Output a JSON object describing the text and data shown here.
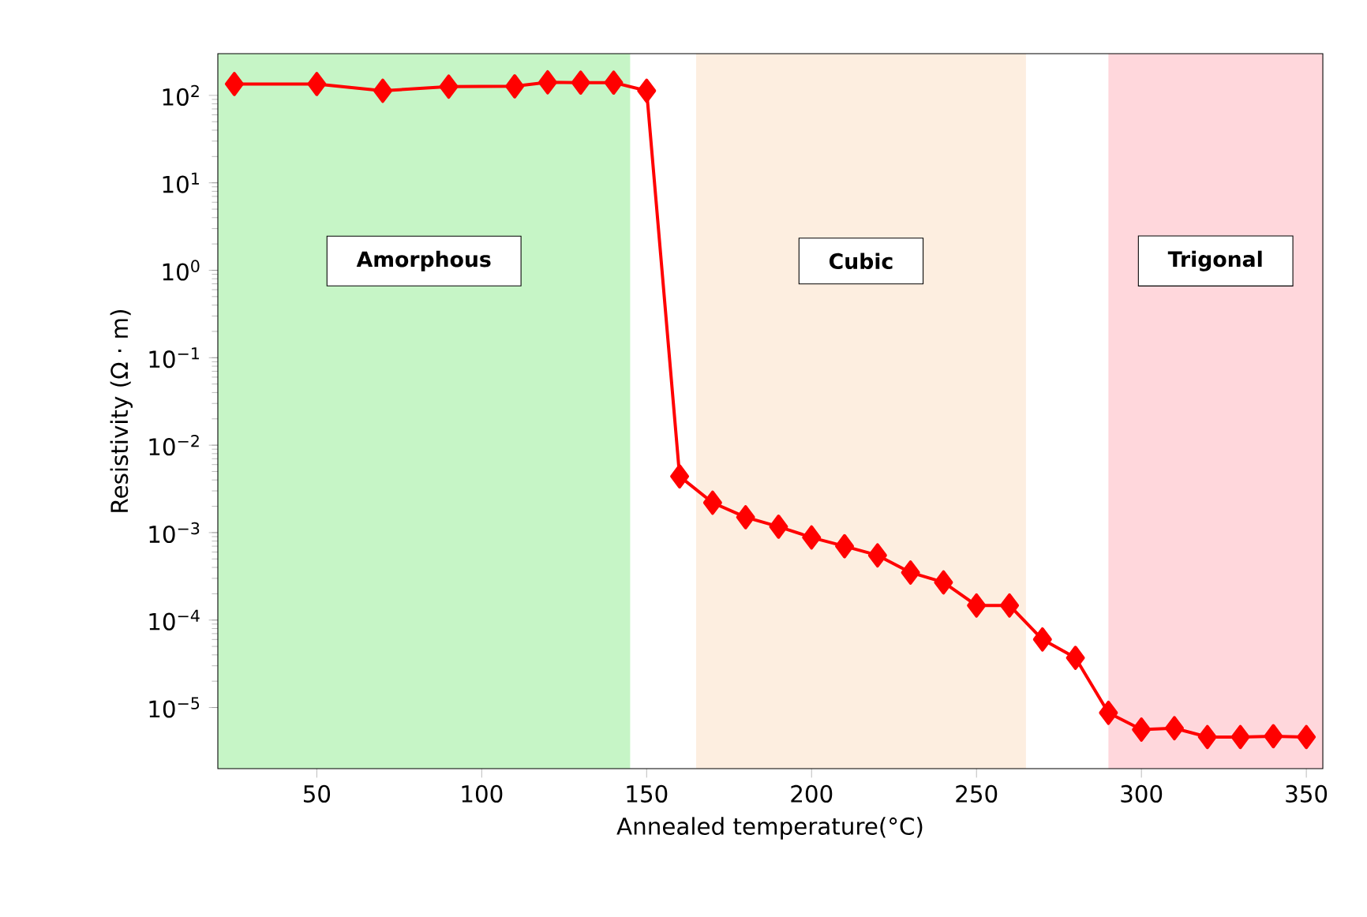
{
  "chart_data": {
    "type": "line",
    "xlabel": "Annealed temperature(°C)",
    "ylabel": "Resistivity (Ω · m)",
    "log": "y",
    "marker": "diamond",
    "line_style": "solid",
    "grid": false,
    "xlim": [
      20,
      355
    ],
    "ylim": [
      2e-06,
      300
    ],
    "xticks": [
      50,
      100,
      150,
      200,
      250,
      300,
      350
    ],
    "yticks": [
      {
        "value": 1e-05,
        "label": "10$^{−5}$"
      },
      {
        "value": 0.0001,
        "label": "10$^{−4}$"
      },
      {
        "value": 0.001,
        "label": "10$^{−3}$"
      },
      {
        "value": 0.01,
        "label": "10$^{−2}$"
      },
      {
        "value": 0.1,
        "label": "10$^{−1}$"
      },
      {
        "value": 1,
        "label": "10$^{0}$"
      },
      {
        "value": 10,
        "label": "10$^{1}$"
      },
      {
        "value": 100,
        "label": "10$^{2}$"
      }
    ],
    "bands": [
      {
        "axis": "x",
        "from": 20,
        "to": 145,
        "label": "Amorphous",
        "color": "#c6f5c6"
      },
      {
        "axis": "x",
        "from": 165,
        "to": 265,
        "label": "Cubic",
        "color": "#fdeee0"
      },
      {
        "axis": "x",
        "from": 290,
        "to": 355,
        "label": "Trigonal",
        "color": "#ffd7dc"
      }
    ],
    "series": [
      {
        "color": "#ff0000",
        "x": [
          25,
          50,
          70,
          90,
          110,
          120,
          130,
          140,
          150,
          160,
          170,
          180,
          190,
          200,
          210,
          220,
          230,
          240,
          250,
          260,
          270,
          280,
          290,
          300,
          310,
          320,
          330,
          340,
          350
        ],
        "values": [
          135,
          135,
          113,
          126,
          127,
          141,
          140,
          140,
          113,
          0.0044,
          0.0022,
          0.0015,
          0.00117,
          0.00088,
          0.0007,
          0.00055,
          0.00035,
          0.00027,
          0.000147,
          0.000147,
          6e-05,
          3.7e-05,
          8.7e-06,
          5.6e-06,
          5.8e-06,
          4.6e-06,
          4.6e-06,
          4.7e-06,
          4.6e-06
        ]
      }
    ]
  }
}
